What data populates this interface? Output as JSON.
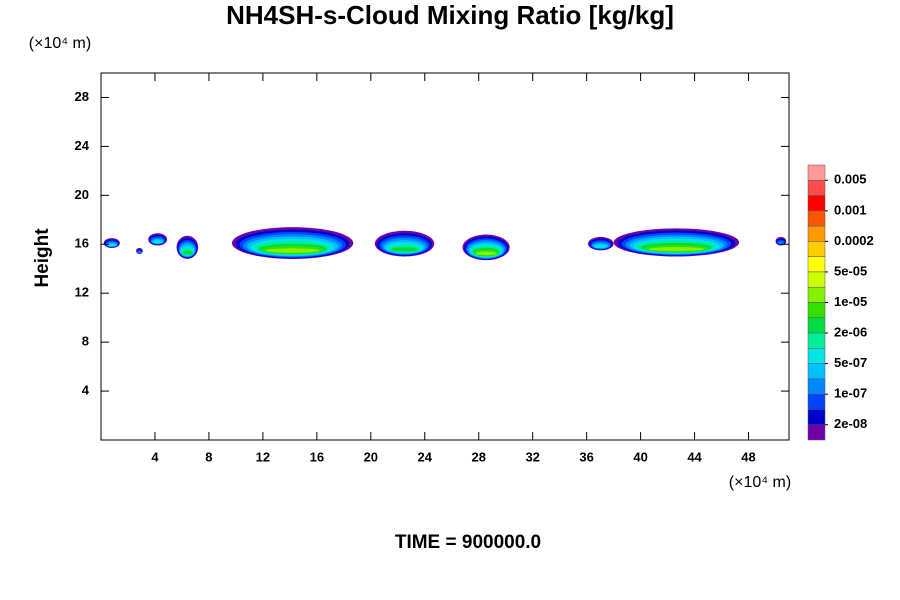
{
  "chart_data": {
    "type": "contour",
    "title": "NH4SH-s-Cloud Mixing Ratio [kg/kg]",
    "x_unit_label": "(×10⁴ m)",
    "y_unit_label": "(×10⁴ m)",
    "ylabel": "Height",
    "footer": "TIME = 900000.0",
    "xlim": [
      0,
      51
    ],
    "ylim": [
      0,
      30
    ],
    "xticks": [
      4,
      8,
      12,
      16,
      20,
      24,
      28,
      32,
      36,
      40,
      44,
      48
    ],
    "yticks": [
      4,
      8,
      12,
      16,
      20,
      24,
      28
    ],
    "colors": [
      "#ff9999",
      "#ff4d4d",
      "#ff0000",
      "#ff5500",
      "#ff9900",
      "#ffcc00",
      "#ffff00",
      "#ccff00",
      "#88f000",
      "#33e000",
      "#00dd44",
      "#00ee99",
      "#00e5e5",
      "#00c0ff",
      "#0088ff",
      "#0044ff",
      "#0000cc",
      "#7000aa"
    ],
    "levels": [
      {
        "value": 0.005,
        "label": "0.005"
      },
      {
        "value": 0.001,
        "label": "0.001"
      },
      {
        "value": 0.0002,
        "label": "0.0002"
      },
      {
        "value": 5e-05,
        "label": "5e-05"
      },
      {
        "value": 1e-05,
        "label": "1e-05"
      },
      {
        "value": 2e-06,
        "label": "2e-06"
      },
      {
        "value": 5e-07,
        "label": "5e-07"
      },
      {
        "value": 1e-07,
        "label": "1e-07"
      },
      {
        "value": 2e-08,
        "label": "2e-08"
      }
    ],
    "clouds": [
      {
        "x": [
          0.2,
          1.4
        ],
        "y": [
          15.7,
          16.5
        ],
        "peak": 5e-07
      },
      {
        "x": [
          2.6,
          3.1
        ],
        "y": [
          15.2,
          15.7
        ],
        "peak": 1e-07
      },
      {
        "x": [
          3.5,
          4.9
        ],
        "y": [
          15.9,
          16.9
        ],
        "peak": 5e-07
      },
      {
        "x": [
          5.6,
          7.2
        ],
        "y": [
          14.8,
          16.7
        ],
        "peak": 2e-06
      },
      {
        "x": [
          9.7,
          18.7
        ],
        "y": [
          14.8,
          17.4
        ],
        "peak": 2e-05
      },
      {
        "x": [
          20.3,
          24.7
        ],
        "y": [
          15.0,
          17.1
        ],
        "peak": 2e-06
      },
      {
        "x": [
          26.8,
          30.3
        ],
        "y": [
          14.7,
          16.8
        ],
        "peak": 2e-05
      },
      {
        "x": [
          36.1,
          38.0
        ],
        "y": [
          15.5,
          16.6
        ],
        "peak": 5e-07
      },
      {
        "x": [
          38.0,
          47.3
        ],
        "y": [
          15.0,
          17.3
        ],
        "peak": 2e-05
      },
      {
        "x": [
          50.0,
          50.8
        ],
        "y": [
          15.9,
          16.6
        ],
        "peak": 1e-07
      }
    ]
  }
}
